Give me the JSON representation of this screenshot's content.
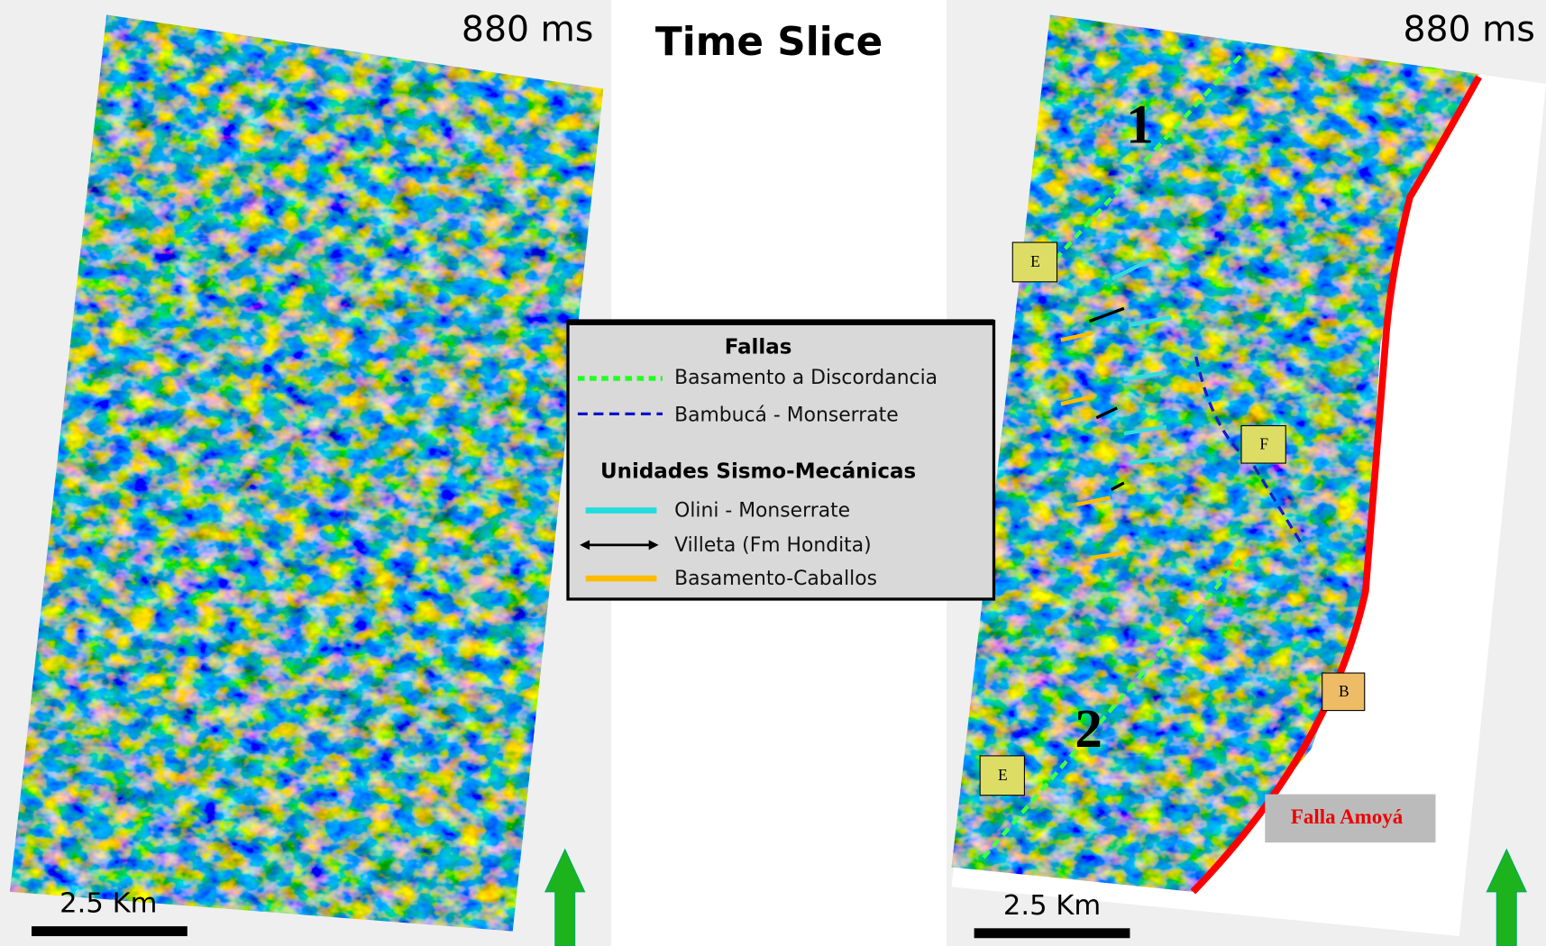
{
  "title": "Time Slice",
  "left_panel": {
    "time": "880 ms",
    "scale": "2.5 Km"
  },
  "right_panel": {
    "time": "880 ms",
    "scale": "2.5 Km",
    "fault_numbers": [
      "1",
      "2"
    ],
    "boxes": [
      "E",
      "F",
      "B",
      "E"
    ],
    "fault_name": "Falla Amoyá"
  },
  "legend": {
    "faults_title": "Fallas",
    "faults": [
      "Basamento a Discordancia",
      "Bambucá - Monserrate"
    ],
    "units_title": "Unidades Sismo-Mecánicas",
    "units": [
      "Olini - Monserrate",
      "Villeta (Fm Hondita)",
      "Basamento-Caballos"
    ]
  }
}
